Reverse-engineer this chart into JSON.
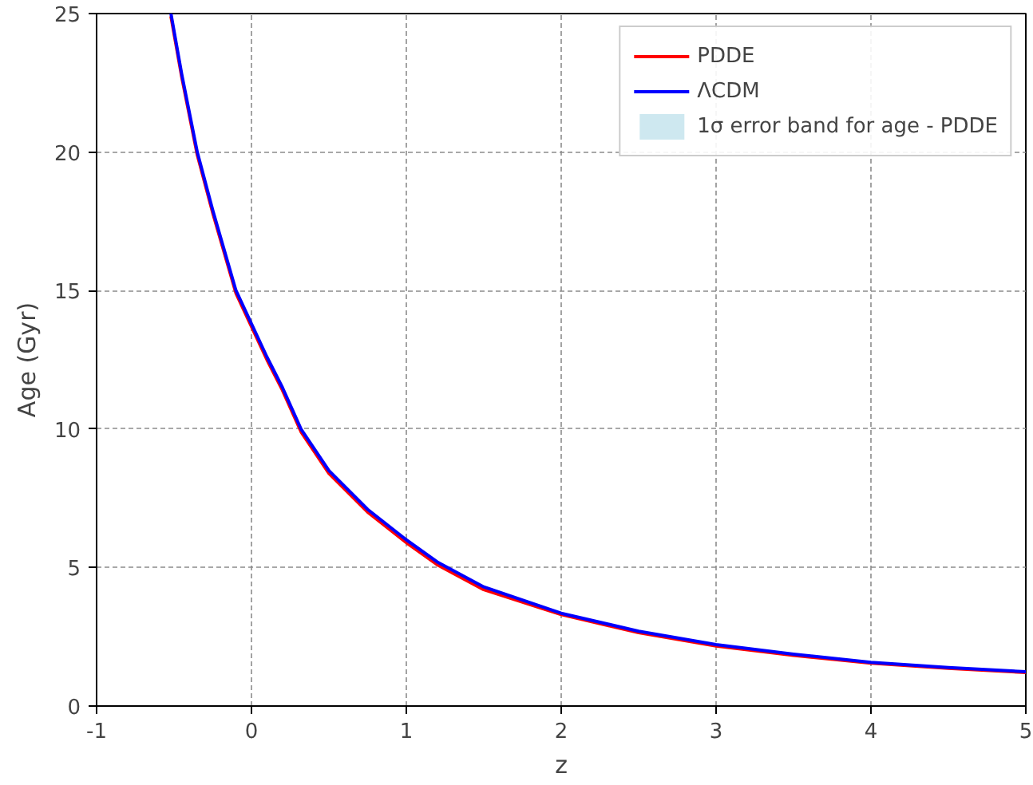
{
  "chart_data": {
    "type": "line",
    "xlabel": "z",
    "ylabel": "Age (Gyr)",
    "xlim": [
      -1,
      5
    ],
    "ylim": [
      0,
      25
    ],
    "xticks": [
      -1,
      0,
      1,
      2,
      3,
      4,
      5
    ],
    "yticks": [
      0,
      5,
      10,
      15,
      20,
      25
    ],
    "grid": true,
    "legend": "top right",
    "line_style": "solid",
    "marker": "none",
    "x": [
      -0.52,
      -0.45,
      -0.35,
      -0.25,
      -0.1,
      0,
      0.1,
      0.2,
      0.32,
      0.5,
      0.75,
      1,
      1.2,
      1.5,
      2,
      2.5,
      3,
      3.5,
      4,
      4.5,
      5
    ],
    "series": [
      {
        "name": "PDDE",
        "color": "#ff0000",
        "values": [
          24.9,
          22.7,
          19.9,
          17.8,
          14.9,
          13.7,
          12.5,
          11.4,
          9.9,
          8.4,
          7.0,
          5.9,
          5.1,
          4.2,
          3.3,
          2.65,
          2.17,
          1.83,
          1.55,
          1.36,
          1.21
        ]
      },
      {
        "name": "ΛCDM",
        "color": "#0000ff",
        "values": [
          25,
          22.8,
          20,
          17.9,
          15,
          13.8,
          12.6,
          11.5,
          10,
          8.5,
          7.1,
          6.0,
          5.2,
          4.3,
          3.35,
          2.7,
          2.22,
          1.87,
          1.58,
          1.39,
          1.24
        ]
      },
      {
        "name": "1σ error band for age - PDDE",
        "type": "area",
        "color": "#add8e6",
        "values": [
          null,
          null,
          null,
          null,
          null,
          null,
          null,
          null,
          null,
          null,
          null,
          null,
          null,
          null,
          null,
          null,
          null,
          null,
          null,
          null,
          null
        ]
      }
    ]
  }
}
